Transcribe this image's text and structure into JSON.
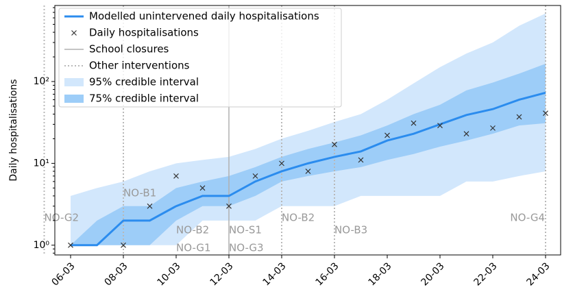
{
  "chart_data": {
    "type": "line",
    "y_label": "Daily hospitalisations",
    "log_scale": true,
    "categories": [
      "06-03",
      null,
      "08-03",
      null,
      "10-03",
      null,
      "12-03",
      null,
      "14-03",
      null,
      "16-03",
      null,
      "18-03",
      null,
      "20-03",
      null,
      "22-03",
      null,
      "24-03"
    ],
    "ylim": [
      0.76,
      850
    ],
    "yticks": [
      {
        "value": 1,
        "label": "10⁰"
      },
      {
        "value": 10,
        "label": "10¹"
      },
      {
        "value": 100,
        "label": "10²"
      }
    ],
    "legend": "upper left",
    "series": [
      {
        "name": "Modelled unintervened daily hospitalisations",
        "color": "#2b8cee",
        "values": [
          1,
          1,
          2,
          2,
          3,
          4,
          4,
          6,
          8,
          10,
          12,
          14,
          19,
          23,
          30,
          39,
          46,
          60,
          73
        ]
      },
      {
        "name": "Daily hospitalisations",
        "color": "#333333",
        "marker": "x",
        "values": [
          1,
          null,
          1,
          3,
          7,
          5,
          3,
          7,
          10,
          8,
          17,
          11,
          22,
          31,
          29,
          23,
          27,
          37,
          41
        ]
      }
    ],
    "bands": [
      {
        "name": "95% credible interval",
        "color": "#d2e7fc",
        "lower": [
          1,
          1,
          1,
          1,
          1,
          2,
          2,
          2,
          3,
          3,
          3,
          4,
          4,
          4,
          4,
          6,
          6,
          7,
          8
        ],
        "upper": [
          4,
          5,
          6,
          8,
          10,
          11,
          12,
          15,
          20,
          25,
          32,
          40,
          60,
          95,
          150,
          220,
          300,
          480,
          680
        ]
      },
      {
        "name": "75% credible interval",
        "color": "#9dcdf8",
        "lower": [
          1,
          1,
          1,
          1,
          2,
          3,
          3,
          4,
          6,
          7,
          8,
          9,
          11,
          13,
          16,
          19,
          23,
          29,
          31
        ],
        "upper": [
          1,
          2,
          3,
          3,
          5,
          6,
          7,
          9,
          12,
          15,
          18,
          22,
          29,
          40,
          52,
          78,
          97,
          125,
          165
        ]
      }
    ],
    "school_closures": {
      "name": "School closures",
      "color": "#b0b0b0",
      "dates": [
        "12-03"
      ]
    },
    "other_interventions": {
      "name": "Other interventions",
      "color": "#b8b8b8",
      "dates": [
        "08-03",
        "11-03",
        "14-03",
        "16-03",
        "24-03"
      ]
    },
    "annotations": [
      {
        "text": "NO-B1",
        "x": "08-03"
      },
      {
        "text": "NO-B2",
        "x": "10-03"
      },
      {
        "text": "NO-G1",
        "x": "10-03"
      },
      {
        "text": "NO-G2",
        "x": "11-03"
      },
      {
        "text": "NO-S1",
        "x": "12-03"
      },
      {
        "text": "NO-G3",
        "x": "12-03"
      },
      {
        "text": "NO-B2",
        "x": "14-03"
      },
      {
        "text": "NO-B3",
        "x": "16-03"
      },
      {
        "text": "NO-G4",
        "x": "24-03"
      }
    ]
  }
}
